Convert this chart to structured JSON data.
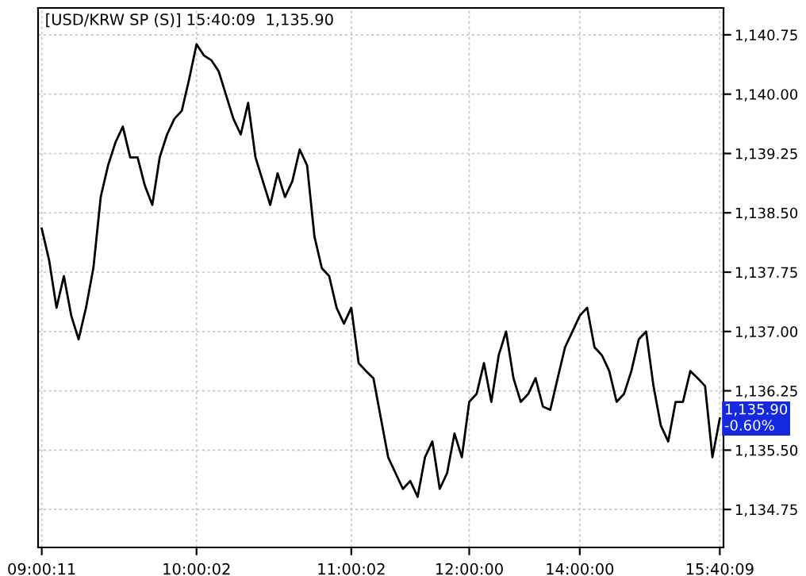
{
  "chart_data": {
    "type": "line",
    "title": "[USD/KRW SP (S)] 15:40:09  1,135.90",
    "categories": [
      "09:00:11",
      null,
      null,
      null,
      null,
      null,
      null,
      null,
      null,
      null,
      null,
      null,
      null,
      null,
      null,
      null,
      null,
      null,
      null,
      null,
      null,
      "10:00:02",
      null,
      null,
      null,
      null,
      null,
      null,
      null,
      null,
      null,
      null,
      null,
      null,
      null,
      null,
      null,
      null,
      null,
      null,
      null,
      null,
      "11:00:02",
      null,
      null,
      null,
      null,
      null,
      null,
      null,
      null,
      null,
      null,
      null,
      null,
      null,
      null,
      null,
      "12:00:00",
      null,
      null,
      null,
      null,
      null,
      null,
      null,
      null,
      null,
      null,
      null,
      null,
      null,
      null,
      "14:00:00",
      null,
      null,
      null,
      null,
      null,
      null,
      null,
      null,
      null,
      null,
      null,
      null,
      null,
      null,
      null,
      null,
      null,
      null,
      "15:40:09"
    ],
    "series": [
      {
        "color": "#000000",
        "values": [
          1138.3,
          1137.9,
          1137.3,
          1137.7,
          1137.2,
          1136.9,
          1137.3,
          1137.8,
          1138.7,
          1139.1,
          1139.39,
          1139.59,
          1139.2,
          1139.2,
          1138.84,
          1138.6,
          1139.2,
          1139.49,
          1139.69,
          1139.79,
          1140.19,
          1140.63,
          1140.49,
          1140.43,
          1140.29,
          1139.99,
          1139.69,
          1139.49,
          1139.89,
          1139.2,
          1138.9,
          1138.6,
          1139.0,
          1138.7,
          1138.9,
          1139.3,
          1139.1,
          1138.2,
          1137.8,
          1137.7,
          1137.3,
          1137.1,
          1137.3,
          1136.6,
          1136.5,
          1136.41,
          1135.91,
          1135.41,
          1135.21,
          1135.01,
          1135.11,
          1134.91,
          1135.41,
          1135.61,
          1135.01,
          1135.21,
          1135.71,
          1135.41,
          1136.11,
          1136.21,
          1136.6,
          1136.11,
          1136.7,
          1137.0,
          1136.41,
          1136.11,
          1136.21,
          1136.41,
          1136.05,
          1136.01,
          1136.41,
          1136.8,
          1137.0,
          1137.2,
          1137.3,
          1136.8,
          1136.7,
          1136.5,
          1136.11,
          1136.21,
          1136.5,
          1136.9,
          1137.0,
          1136.31,
          1135.81,
          1135.61,
          1136.11,
          1136.11,
          1136.5,
          1136.41,
          1136.31,
          1135.41,
          1135.9
        ]
      }
    ],
    "ylim": [
      1134.27,
      1141.09
    ],
    "yticks": [
      {
        "value": 1134.75,
        "label": "1,134.75"
      },
      {
        "value": 1135.5,
        "label": "1,135.50"
      },
      {
        "value": 1136.25,
        "label": "1,136.25"
      },
      {
        "value": 1137.0,
        "label": "1,137.00"
      },
      {
        "value": 1137.75,
        "label": "1,137.75"
      },
      {
        "value": 1138.5,
        "label": "1,138.50"
      },
      {
        "value": 1139.25,
        "label": "1,139.25"
      },
      {
        "value": 1140.0,
        "label": "1,140.00"
      },
      {
        "value": 1140.75,
        "label": "1,140.75"
      }
    ],
    "annotations": [
      {
        "text": "1,135.90\n-0.60%",
        "x": "15:40:09",
        "y": 1135.9
      }
    ],
    "grid": true,
    "marker": "none",
    "line_style": "solid"
  }
}
